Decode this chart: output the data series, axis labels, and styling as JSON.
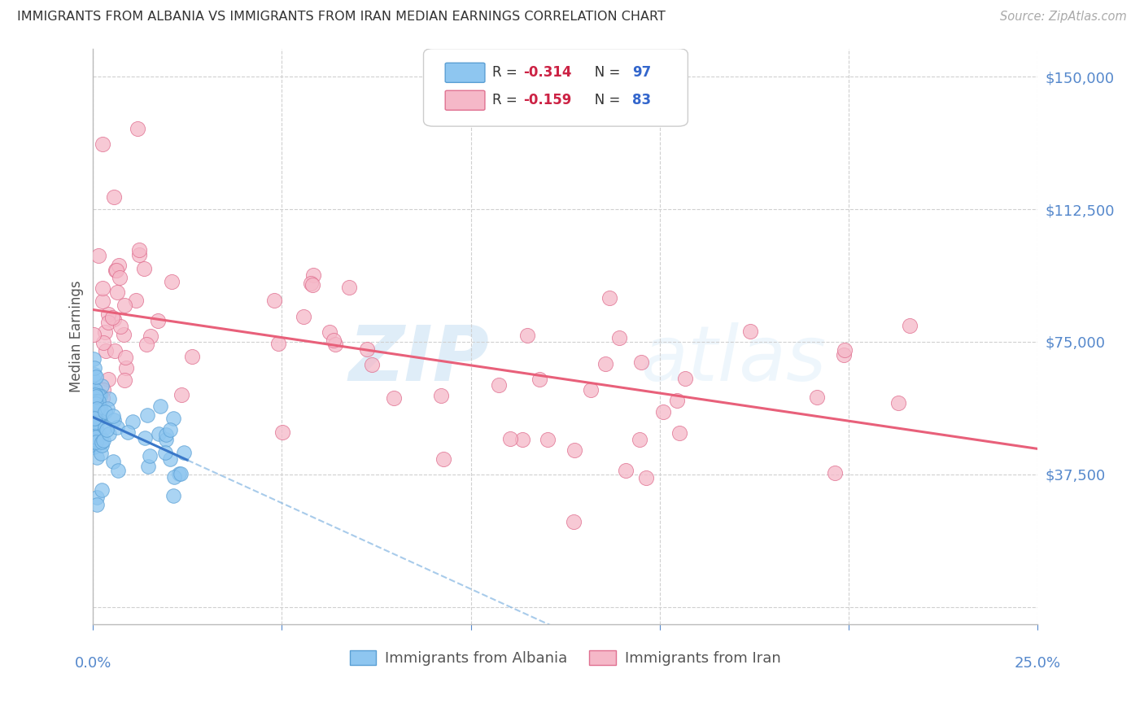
{
  "title": "IMMIGRANTS FROM ALBANIA VS IMMIGRANTS FROM IRAN MEDIAN EARNINGS CORRELATION CHART",
  "source": "Source: ZipAtlas.com",
  "ylabel": "Median Earnings",
  "ymin": -5000,
  "ymax": 158000,
  "xmin": 0.0,
  "xmax": 0.25,
  "albania_color": "#8ec6f0",
  "albania_edge": "#5a9fd4",
  "iran_color": "#f5b8c8",
  "iran_edge": "#e07090",
  "albania_line_color": "#3a78c9",
  "albania_line_dash_color": "#7ab0e0",
  "iran_line_color": "#e8607a",
  "albania_R": -0.314,
  "albania_N": 97,
  "iran_R": -0.159,
  "iran_N": 83,
  "watermark_text": "ZIPatlas",
  "legend_label_albania": "Immigrants from Albania",
  "legend_label_iran": "Immigrants from Iran",
  "background_color": "#ffffff",
  "grid_color": "#d0d0d0",
  "title_color": "#333333",
  "ytick_vals": [
    0,
    37500,
    75000,
    112500,
    150000
  ],
  "ytick_labels": [
    "",
    "$37,500",
    "$75,000",
    "$112,500",
    "$150,000"
  ],
  "xtick_color": "#5588cc",
  "ytick_color": "#5588cc",
  "legend_R_color": "#cc2244",
  "legend_N_color": "#3366cc",
  "legend_text_color": "#333333",
  "source_color": "#aaaaaa"
}
